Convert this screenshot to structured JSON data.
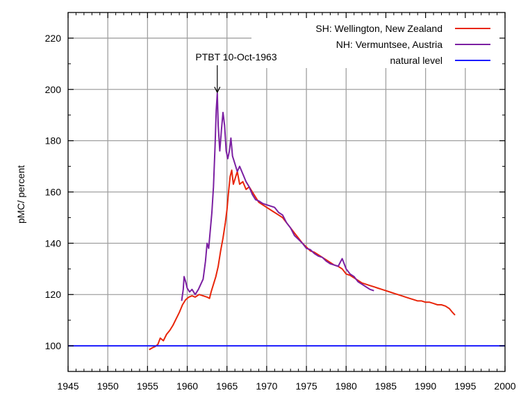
{
  "chart_data": {
    "type": "line",
    "title": "",
    "xlabel": "",
    "ylabel": "pMC/ percent",
    "xlim": [
      1945,
      2000
    ],
    "ylim": [
      90,
      230
    ],
    "x_ticks": [
      1945,
      1950,
      1955,
      1960,
      1965,
      1970,
      1975,
      1980,
      1985,
      1990,
      1995,
      2000
    ],
    "y_ticks": [
      100,
      120,
      140,
      160,
      180,
      200,
      220
    ],
    "grid": true,
    "legend_position": "top-right",
    "annotation": {
      "text": "PTBT 10-Oct-1963",
      "x": 1963.78,
      "y": 198
    },
    "series": [
      {
        "name": "SH: Wellington, New Zealand",
        "color": "#e8250a",
        "points": [
          [
            1955.2,
            98.5
          ],
          [
            1955.6,
            99.2
          ],
          [
            1956.0,
            99.8
          ],
          [
            1956.3,
            100.5
          ],
          [
            1956.6,
            103.0
          ],
          [
            1957.0,
            102.0
          ],
          [
            1957.4,
            104.5
          ],
          [
            1957.8,
            106.0
          ],
          [
            1958.2,
            108.0
          ],
          [
            1958.6,
            110.5
          ],
          [
            1959.0,
            113.0
          ],
          [
            1959.4,
            116.0
          ],
          [
            1959.8,
            118.0
          ],
          [
            1960.2,
            119.0
          ],
          [
            1960.6,
            119.5
          ],
          [
            1961.0,
            119.0
          ],
          [
            1961.5,
            120.0
          ],
          [
            1962.0,
            119.5
          ],
          [
            1962.5,
            119.0
          ],
          [
            1962.8,
            118.5
          ],
          [
            1963.0,
            121.0
          ],
          [
            1963.3,
            124.0
          ],
          [
            1963.6,
            127.0
          ],
          [
            1963.9,
            131.0
          ],
          [
            1964.2,
            137.0
          ],
          [
            1964.5,
            142.0
          ],
          [
            1964.8,
            148.0
          ],
          [
            1965.0,
            153.0
          ],
          [
            1965.2,
            160.0
          ],
          [
            1965.4,
            166.0
          ],
          [
            1965.6,
            168.5
          ],
          [
            1965.8,
            163.0
          ],
          [
            1966.0,
            165.0
          ],
          [
            1966.3,
            168.0
          ],
          [
            1966.6,
            163.0
          ],
          [
            1967.0,
            164.0
          ],
          [
            1967.4,
            161.0
          ],
          [
            1967.8,
            162.0
          ],
          [
            1968.2,
            160.0
          ],
          [
            1968.6,
            158.0
          ],
          [
            1969.0,
            156.0
          ],
          [
            1969.5,
            155.0
          ],
          [
            1970.0,
            154.0
          ],
          [
            1970.5,
            153.0
          ],
          [
            1971.0,
            152.0
          ],
          [
            1971.5,
            151.0
          ],
          [
            1972.0,
            150.0
          ],
          [
            1972.5,
            148.0
          ],
          [
            1973.0,
            146.0
          ],
          [
            1973.5,
            144.0
          ],
          [
            1974.0,
            142.0
          ],
          [
            1974.5,
            140.0
          ],
          [
            1975.0,
            138.5
          ],
          [
            1975.5,
            137.0
          ],
          [
            1976.0,
            136.5
          ],
          [
            1976.5,
            135.5
          ],
          [
            1977.0,
            134.5
          ],
          [
            1977.5,
            133.5
          ],
          [
            1978.0,
            132.5
          ],
          [
            1978.5,
            131.5
          ],
          [
            1979.0,
            131.0
          ],
          [
            1979.5,
            130.0
          ],
          [
            1980.0,
            128.0
          ],
          [
            1980.5,
            127.5
          ],
          [
            1981.0,
            126.5
          ],
          [
            1981.5,
            125.5
          ],
          [
            1982.0,
            124.5
          ],
          [
            1982.5,
            124.0
          ],
          [
            1983.0,
            123.5
          ],
          [
            1983.5,
            123.0
          ],
          [
            1984.0,
            122.5
          ],
          [
            1984.5,
            122.0
          ],
          [
            1985.0,
            121.5
          ],
          [
            1985.5,
            121.0
          ],
          [
            1986.0,
            120.5
          ],
          [
            1986.5,
            120.0
          ],
          [
            1987.0,
            119.5
          ],
          [
            1987.5,
            119.0
          ],
          [
            1988.0,
            118.5
          ],
          [
            1988.5,
            118.0
          ],
          [
            1989.0,
            117.5
          ],
          [
            1989.5,
            117.5
          ],
          [
            1990.0,
            117.0
          ],
          [
            1990.5,
            117.0
          ],
          [
            1991.0,
            116.5
          ],
          [
            1991.5,
            116.0
          ],
          [
            1992.0,
            116.0
          ],
          [
            1992.5,
            115.5
          ],
          [
            1993.0,
            114.5
          ],
          [
            1993.4,
            113.0
          ],
          [
            1993.7,
            112.0
          ]
        ]
      },
      {
        "name": "NH: Vermuntsee, Austria",
        "color": "#7b1fa2",
        "points": [
          [
            1959.3,
            117.5
          ],
          [
            1959.5,
            122.0
          ],
          [
            1959.6,
            127.0
          ],
          [
            1959.8,
            125.0
          ],
          [
            1960.0,
            122.5
          ],
          [
            1960.3,
            121.0
          ],
          [
            1960.6,
            122.0
          ],
          [
            1961.0,
            120.0
          ],
          [
            1961.4,
            122.0
          ],
          [
            1961.7,
            124.0
          ],
          [
            1962.0,
            126.0
          ],
          [
            1962.3,
            133.0
          ],
          [
            1962.5,
            140.0
          ],
          [
            1962.7,
            138.0
          ],
          [
            1962.9,
            145.0
          ],
          [
            1963.1,
            152.0
          ],
          [
            1963.3,
            162.0
          ],
          [
            1963.5,
            178.0
          ],
          [
            1963.65,
            192.0
          ],
          [
            1963.78,
            198.5
          ],
          [
            1963.9,
            186.0
          ],
          [
            1964.1,
            176.0
          ],
          [
            1964.3,
            184.0
          ],
          [
            1964.5,
            191.0
          ],
          [
            1964.7,
            186.0
          ],
          [
            1964.9,
            176.0
          ],
          [
            1965.1,
            173.0
          ],
          [
            1965.3,
            176.0
          ],
          [
            1965.5,
            181.0
          ],
          [
            1965.7,
            174.0
          ],
          [
            1966.0,
            171.0
          ],
          [
            1966.3,
            168.0
          ],
          [
            1966.6,
            170.0
          ],
          [
            1967.0,
            167.0
          ],
          [
            1967.4,
            164.0
          ],
          [
            1967.8,
            162.0
          ],
          [
            1968.2,
            159.0
          ],
          [
            1968.6,
            157.0
          ],
          [
            1969.0,
            156.5
          ],
          [
            1969.5,
            155.5
          ],
          [
            1970.0,
            155.0
          ],
          [
            1970.5,
            154.5
          ],
          [
            1971.0,
            154.0
          ],
          [
            1971.5,
            152.0
          ],
          [
            1972.0,
            151.0
          ],
          [
            1972.5,
            148.0
          ],
          [
            1973.0,
            146.0
          ],
          [
            1973.5,
            143.0
          ],
          [
            1974.0,
            141.5
          ],
          [
            1974.5,
            140.0
          ],
          [
            1975.0,
            138.0
          ],
          [
            1975.5,
            137.5
          ],
          [
            1976.0,
            136.0
          ],
          [
            1976.5,
            135.0
          ],
          [
            1977.0,
            134.5
          ],
          [
            1977.5,
            133.0
          ],
          [
            1978.0,
            132.0
          ],
          [
            1978.5,
            131.5
          ],
          [
            1979.0,
            131.0
          ],
          [
            1979.5,
            134.0
          ],
          [
            1980.0,
            130.0
          ],
          [
            1980.5,
            128.0
          ],
          [
            1981.0,
            127.0
          ],
          [
            1981.5,
            125.0
          ],
          [
            1982.0,
            124.0
          ],
          [
            1982.5,
            123.0
          ],
          [
            1983.0,
            122.0
          ],
          [
            1983.5,
            121.5
          ]
        ]
      },
      {
        "name": "natural level",
        "color": "#1a1aff",
        "points": [
          [
            1945,
            100
          ],
          [
            2000,
            100
          ]
        ]
      }
    ]
  }
}
